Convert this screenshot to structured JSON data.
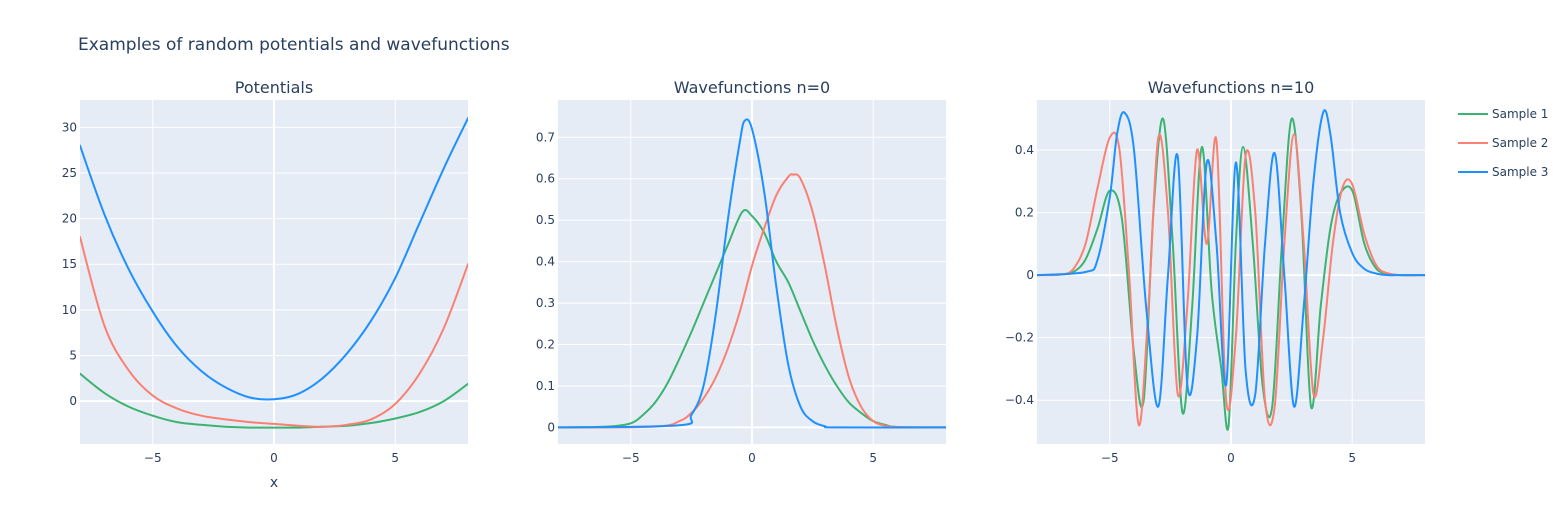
{
  "figure_title": "Examples of random potentials and wavefunctions",
  "colors": {
    "plot_bg": "#e5ecf6",
    "grid": "#ffffff",
    "text": "#2a3f5f",
    "sample_1": "#3cb371",
    "sample_2": "#fa8072",
    "sample_3": "#1e90ff"
  },
  "legend": {
    "placement": "right",
    "entries": [
      "Sample 1",
      "Sample 2",
      "Sample 3"
    ]
  },
  "chart_data": [
    {
      "type": "line",
      "title": "Potentials",
      "xlabel": "x",
      "ylabel": "",
      "xlim": [
        -8,
        8
      ],
      "ylim": [
        -4.7,
        33
      ],
      "xticks": [
        -5,
        0,
        5
      ],
      "xtick_labels": [
        "−5",
        "0",
        "5"
      ],
      "yticks": [
        0,
        5,
        10,
        15,
        20,
        25,
        30
      ],
      "ytick_labels": [
        "0",
        "5",
        "10",
        "15",
        "20",
        "25",
        "30"
      ],
      "grid": true,
      "series": [
        {
          "name": "Sample 1",
          "x": [
            -8,
            -7,
            -6,
            -5,
            -4,
            -3,
            -2,
            -1,
            0,
            1,
            2,
            3,
            4,
            5,
            6,
            7,
            8
          ],
          "y": [
            3,
            0.9,
            -0.6,
            -1.6,
            -2.3,
            -2.6,
            -2.8,
            -2.9,
            -2.9,
            -2.9,
            -2.8,
            -2.7,
            -2.4,
            -1.9,
            -1.2,
            0,
            1.9
          ]
        },
        {
          "name": "Sample 2",
          "x": [
            -8,
            -7,
            -6,
            -5,
            -4,
            -3,
            -2,
            -1,
            0,
            1,
            2,
            3,
            4,
            5,
            6,
            7,
            8
          ],
          "y": [
            18,
            8.3,
            3.4,
            0.6,
            -0.8,
            -1.6,
            -2,
            -2.3,
            -2.5,
            -2.7,
            -2.8,
            -2.6,
            -2,
            -0.3,
            3,
            8,
            15
          ]
        },
        {
          "name": "Sample 3",
          "x": [
            -8,
            -7,
            -6,
            -5,
            -4,
            -3,
            -2,
            -1,
            0,
            1,
            2,
            3,
            4,
            5,
            6,
            7,
            8
          ],
          "y": [
            28,
            20.5,
            14.5,
            9.8,
            6,
            3.3,
            1.5,
            0.4,
            0.2,
            0.8,
            2.5,
            5.2,
            8.8,
            13.5,
            19.5,
            25.5,
            31
          ]
        }
      ]
    },
    {
      "type": "line",
      "title": "Wavefunctions n=0",
      "xlabel": "",
      "ylabel": "",
      "xlim": [
        -8,
        8
      ],
      "ylim": [
        -0.04,
        0.79
      ],
      "xticks": [
        -5,
        0,
        5
      ],
      "xtick_labels": [
        "−5",
        "0",
        "5"
      ],
      "yticks": [
        0,
        0.1,
        0.2,
        0.3,
        0.4,
        0.5,
        0.6,
        0.7
      ],
      "ytick_labels": [
        "0",
        "0.1",
        "0.2",
        "0.3",
        "0.4",
        "0.5",
        "0.6",
        "0.7"
      ],
      "grid": true,
      "series": [
        {
          "name": "Sample 1",
          "x": [
            -8,
            -6,
            -5,
            -4.5,
            -4,
            -3.5,
            -3,
            -2.5,
            -2,
            -1.5,
            -1,
            -0.4,
            0,
            0.5,
            1,
            1.5,
            2,
            2.5,
            3,
            3.5,
            4,
            4.5,
            5,
            5.5,
            6,
            8
          ],
          "y": [
            0,
            0.002,
            0.01,
            0.03,
            0.06,
            0.105,
            0.165,
            0.23,
            0.3,
            0.37,
            0.44,
            0.52,
            0.51,
            0.47,
            0.4,
            0.35,
            0.28,
            0.21,
            0.15,
            0.1,
            0.06,
            0.035,
            0.015,
            0.006,
            0.001,
            0
          ]
        },
        {
          "name": "Sample 2",
          "x": [
            -8,
            -4,
            -3,
            -2.5,
            -2,
            -1.5,
            -1,
            -0.5,
            0,
            0.5,
            1,
            1.5,
            1.7,
            2,
            2.5,
            3,
            3.5,
            4,
            4.5,
            5,
            5.5,
            6,
            8
          ],
          "y": [
            0,
            0.002,
            0.015,
            0.035,
            0.07,
            0.12,
            0.19,
            0.28,
            0.39,
            0.48,
            0.56,
            0.605,
            0.61,
            0.6,
            0.52,
            0.39,
            0.24,
            0.12,
            0.05,
            0.015,
            0.004,
            0.001,
            0
          ]
        },
        {
          "name": "Sample 3",
          "x": [
            -8,
            -3,
            -2.5,
            -2,
            -1.5,
            -1,
            -0.5,
            -0.3,
            0,
            0.5,
            1,
            1.5,
            2,
            2.5,
            3,
            3.5,
            8
          ],
          "y": [
            0,
            0.005,
            0.03,
            0.1,
            0.27,
            0.5,
            0.69,
            0.74,
            0.72,
            0.57,
            0.34,
            0.15,
            0.05,
            0.015,
            0.003,
            0,
            0
          ]
        }
      ]
    },
    {
      "type": "line",
      "title": "Wavefunctions n=10",
      "xlabel": "",
      "ylabel": "",
      "xlim": [
        -8,
        8
      ],
      "ylim": [
        -0.54,
        0.56
      ],
      "xticks": [
        -5,
        0,
        5
      ],
      "xtick_labels": [
        "−5",
        "0",
        "5"
      ],
      "yticks": [
        -0.4,
        -0.2,
        0,
        0.2,
        0.4
      ],
      "ytick_labels": [
        "−0.4",
        "−0.2",
        "0",
        "0.2",
        "0.4"
      ],
      "grid": true,
      "series": [
        {
          "name": "Sample 1",
          "x": [
            -8,
            -7,
            -6.5,
            -6,
            -5.5,
            -5,
            -4.5,
            -4,
            -3.6,
            -3.2,
            -2.8,
            -2.4,
            -2,
            -1.6,
            -1.2,
            -0.8,
            -0.4,
            -0.1,
            0.2,
            0.5,
            0.9,
            1.3,
            1.7,
            2.1,
            2.5,
            2.9,
            3.3,
            3.7,
            4.1,
            4.5,
            5,
            5.5,
            6,
            6.5,
            7,
            8
          ],
          "y": [
            0,
            0.002,
            0.01,
            0.05,
            0.15,
            0.27,
            0.18,
            -0.25,
            -0.4,
            0.2,
            0.5,
            0.1,
            -0.44,
            -0.1,
            0.41,
            -0.05,
            -0.3,
            -0.48,
            0.1,
            0.41,
            0.1,
            -0.35,
            -0.42,
            0.1,
            0.5,
            0.2,
            -0.42,
            -0.1,
            0.15,
            0.26,
            0.27,
            0.1,
            0.02,
            0.005,
            0,
            0
          ]
        },
        {
          "name": "Sample 2",
          "x": [
            -8,
            -7,
            -6.5,
            -6,
            -5.5,
            -5,
            -4.6,
            -4.2,
            -3.8,
            -3.4,
            -3,
            -2.6,
            -2.2,
            -1.8,
            -1.4,
            -1,
            -0.6,
            -0.2,
            0.2,
            0.6,
            1,
            1.4,
            1.8,
            2.2,
            2.6,
            3,
            3.4,
            3.8,
            4.2,
            4.6,
            5,
            5.5,
            6,
            6.5,
            7,
            8
          ],
          "y": [
            0,
            0.002,
            0.02,
            0.1,
            0.28,
            0.44,
            0.4,
            0.0,
            -0.48,
            -0.1,
            0.44,
            0.2,
            -0.38,
            -0.1,
            0.4,
            0.1,
            0.43,
            -0.4,
            -0.2,
            0.38,
            0.2,
            -0.4,
            -0.42,
            0.1,
            0.45,
            0.1,
            -0.38,
            -0.2,
            0.1,
            0.28,
            0.29,
            0.13,
            0.03,
            0.005,
            0,
            0
          ]
        },
        {
          "name": "Sample 3",
          "x": [
            -8,
            -6,
            -5.5,
            -5,
            -4.7,
            -4.4,
            -4,
            -3.5,
            -3,
            -2.6,
            -2.2,
            -1.8,
            -1.4,
            -1,
            -0.6,
            -0.2,
            0.2,
            0.6,
            1,
            1.4,
            1.8,
            2.2,
            2.6,
            3,
            3.4,
            3.8,
            4.1,
            4.5,
            5,
            5.5,
            6,
            6.5,
            7,
            8
          ],
          "y": [
            0,
            0.01,
            0.05,
            0.25,
            0.45,
            0.52,
            0.4,
            -0.1,
            -0.42,
            0.0,
            0.38,
            -0.35,
            -0.2,
            0.36,
            0.1,
            -0.35,
            0.36,
            -0.3,
            -0.38,
            0.1,
            0.39,
            0.0,
            -0.42,
            -0.1,
            0.3,
            0.52,
            0.45,
            0.2,
            0.07,
            0.02,
            0.005,
            0,
            0,
            0
          ]
        }
      ]
    }
  ]
}
